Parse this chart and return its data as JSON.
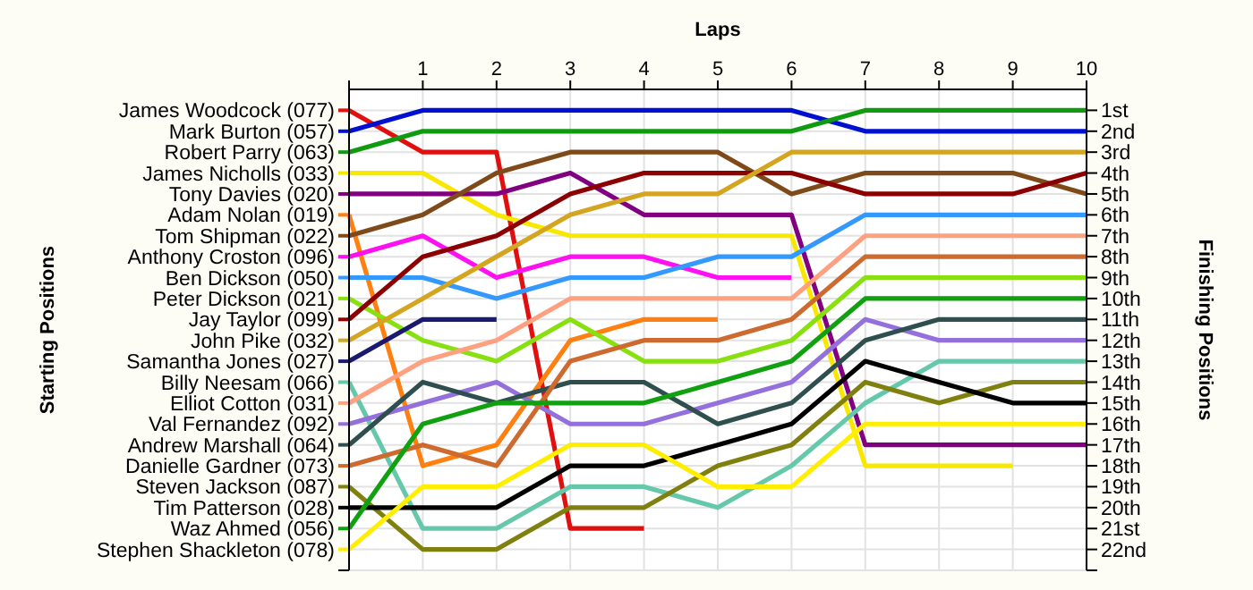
{
  "chart_data": {
    "type": "line",
    "xlabel": "Laps",
    "ylabel": "Finishing Positions",
    "x": [
      0,
      1,
      2,
      3,
      4,
      5,
      6,
      7,
      8,
      9,
      10
    ],
    "xlim": [
      0,
      10
    ],
    "xticks": [
      {
        "value": 0,
        "label": null
      },
      1,
      2,
      3,
      4,
      5,
      6,
      7,
      8,
      9,
      10
    ],
    "ylim": [
      23,
      0
    ],
    "yticks": [
      {
        "value": 1,
        "label": "1st"
      },
      {
        "value": 2,
        "label": "2nd"
      },
      {
        "value": 3,
        "label": "3rd"
      },
      {
        "value": 4,
        "label": "4th"
      },
      {
        "value": 5,
        "label": "5th"
      },
      {
        "value": 6,
        "label": "6th"
      },
      {
        "value": 7,
        "label": "7th"
      },
      {
        "value": 8,
        "label": "8th"
      },
      {
        "value": 9,
        "label": "9th"
      },
      {
        "value": 10,
        "label": "10th"
      },
      {
        "value": 11,
        "label": "11th"
      },
      {
        "value": 12,
        "label": "12th"
      },
      {
        "value": 13,
        "label": "13th"
      },
      {
        "value": 14,
        "label": "14th"
      },
      {
        "value": 15,
        "label": "15th"
      },
      {
        "value": 16,
        "label": "16th"
      },
      {
        "value": 17,
        "label": "17th"
      },
      {
        "value": 18,
        "label": "18th"
      },
      {
        "value": 19,
        "label": "19th"
      },
      {
        "value": 20,
        "label": "20th"
      },
      {
        "value": 21,
        "label": "21st"
      },
      {
        "value": 22,
        "label": "22nd"
      },
      {
        "value": 23,
        "label": null
      }
    ],
    "annotations": [
      "Starting Positions"
    ],
    "grid": true,
    "legend": "left",
    "marker": "none",
    "line_style": "solid",
    "series": [
      {
        "name": "James Woodcock (077)",
        "color": "#e01010",
        "values": [
          1,
          3,
          3,
          21,
          21,
          null,
          null,
          null,
          null,
          null,
          null
        ]
      },
      {
        "name": "Mark Burton (057)",
        "color": "#0010d0",
        "values": [
          2,
          1,
          1,
          1,
          1,
          1,
          1,
          2,
          2,
          2,
          2
        ]
      },
      {
        "name": "Robert Parry (063)",
        "color": "#109a10",
        "values": [
          3,
          2,
          2,
          2,
          2,
          2,
          2,
          1,
          1,
          1,
          1
        ]
      },
      {
        "name": "James Nicholls (033)",
        "color": "#f8e800",
        "values": [
          4,
          4,
          6,
          7,
          7,
          7,
          7,
          18,
          18,
          18,
          null
        ]
      },
      {
        "name": "Tony Davies (020)",
        "color": "#800080",
        "values": [
          5,
          5,
          5,
          4,
          6,
          6,
          6,
          17,
          17,
          17,
          17
        ]
      },
      {
        "name": "Adam Nolan (019)",
        "color": "#ff7f10",
        "values": [
          6,
          18,
          17,
          12,
          11,
          11,
          null,
          null,
          null,
          null,
          null
        ]
      },
      {
        "name": "Tom Shipman (022)",
        "color": "#7f4a1a",
        "values": [
          7,
          6,
          4,
          3,
          3,
          3,
          5,
          4,
          4,
          4,
          5
        ]
      },
      {
        "name": "Anthony Croston (096)",
        "color": "#ff10f0",
        "values": [
          8,
          7,
          9,
          8,
          8,
          9,
          9,
          null,
          null,
          null,
          null
        ]
      },
      {
        "name": "Ben Dickson (050)",
        "color": "#3399ff",
        "values": [
          9,
          9,
          10,
          9,
          9,
          8,
          8,
          6,
          6,
          6,
          6
        ]
      },
      {
        "name": "Peter Dickson (021)",
        "color": "#88e010",
        "values": [
          10,
          12,
          13,
          11,
          13,
          13,
          12,
          9,
          9,
          9,
          9
        ]
      },
      {
        "name": "Jay Taylor (099)",
        "color": "#8b0000",
        "values": [
          11,
          8,
          7,
          5,
          4,
          4,
          4,
          5,
          5,
          5,
          4
        ]
      },
      {
        "name": "John Pike (032)",
        "color": "#d4a520",
        "values": [
          12,
          10,
          8,
          6,
          5,
          5,
          3,
          3,
          3,
          3,
          3
        ]
      },
      {
        "name": "Samantha Jones (027)",
        "color": "#1a1a70",
        "values": [
          13,
          11,
          11,
          null,
          null,
          null,
          null,
          null,
          null,
          null,
          null
        ]
      },
      {
        "name": "Billy Neesam (066)",
        "color": "#66c8aa",
        "values": [
          14,
          21,
          21,
          19,
          19,
          20,
          18,
          15,
          13,
          13,
          13
        ]
      },
      {
        "name": "Elliot Cotton (031)",
        "color": "#ffa080",
        "values": [
          15,
          13,
          12,
          10,
          10,
          10,
          10,
          7,
          7,
          7,
          7
        ]
      },
      {
        "name": "Val Fernandez (092)",
        "color": "#9370db",
        "values": [
          16,
          15,
          14,
          16,
          16,
          15,
          14,
          11,
          12,
          12,
          12
        ]
      },
      {
        "name": "Andrew Marshall (064)",
        "color": "#2f4f4f",
        "values": [
          17,
          14,
          15,
          14,
          14,
          16,
          15,
          12,
          11,
          11,
          11
        ]
      },
      {
        "name": "Danielle Gardner (073)",
        "color": "#cd6a30",
        "values": [
          18,
          17,
          18,
          13,
          12,
          12,
          11,
          8,
          8,
          8,
          8
        ]
      },
      {
        "name": "Steven Jackson (087)",
        "color": "#808010",
        "values": [
          19,
          22,
          22,
          20,
          20,
          18,
          17,
          14,
          15,
          14,
          14
        ]
      },
      {
        "name": "Tim Patterson (028)",
        "color": "#000000",
        "values": [
          20,
          20,
          20,
          18,
          18,
          17,
          16,
          13,
          14,
          15,
          15
        ]
      },
      {
        "name": "Waz Ahmed (056)",
        "color": "#10a010",
        "values": [
          21,
          16,
          15,
          15,
          15,
          14,
          13,
          10,
          10,
          10,
          10
        ]
      },
      {
        "name": "Stephen Shackleton (078)",
        "color": "#ffee00",
        "values": [
          22,
          19,
          19,
          17,
          17,
          19,
          19,
          16,
          16,
          16,
          16
        ]
      }
    ]
  }
}
